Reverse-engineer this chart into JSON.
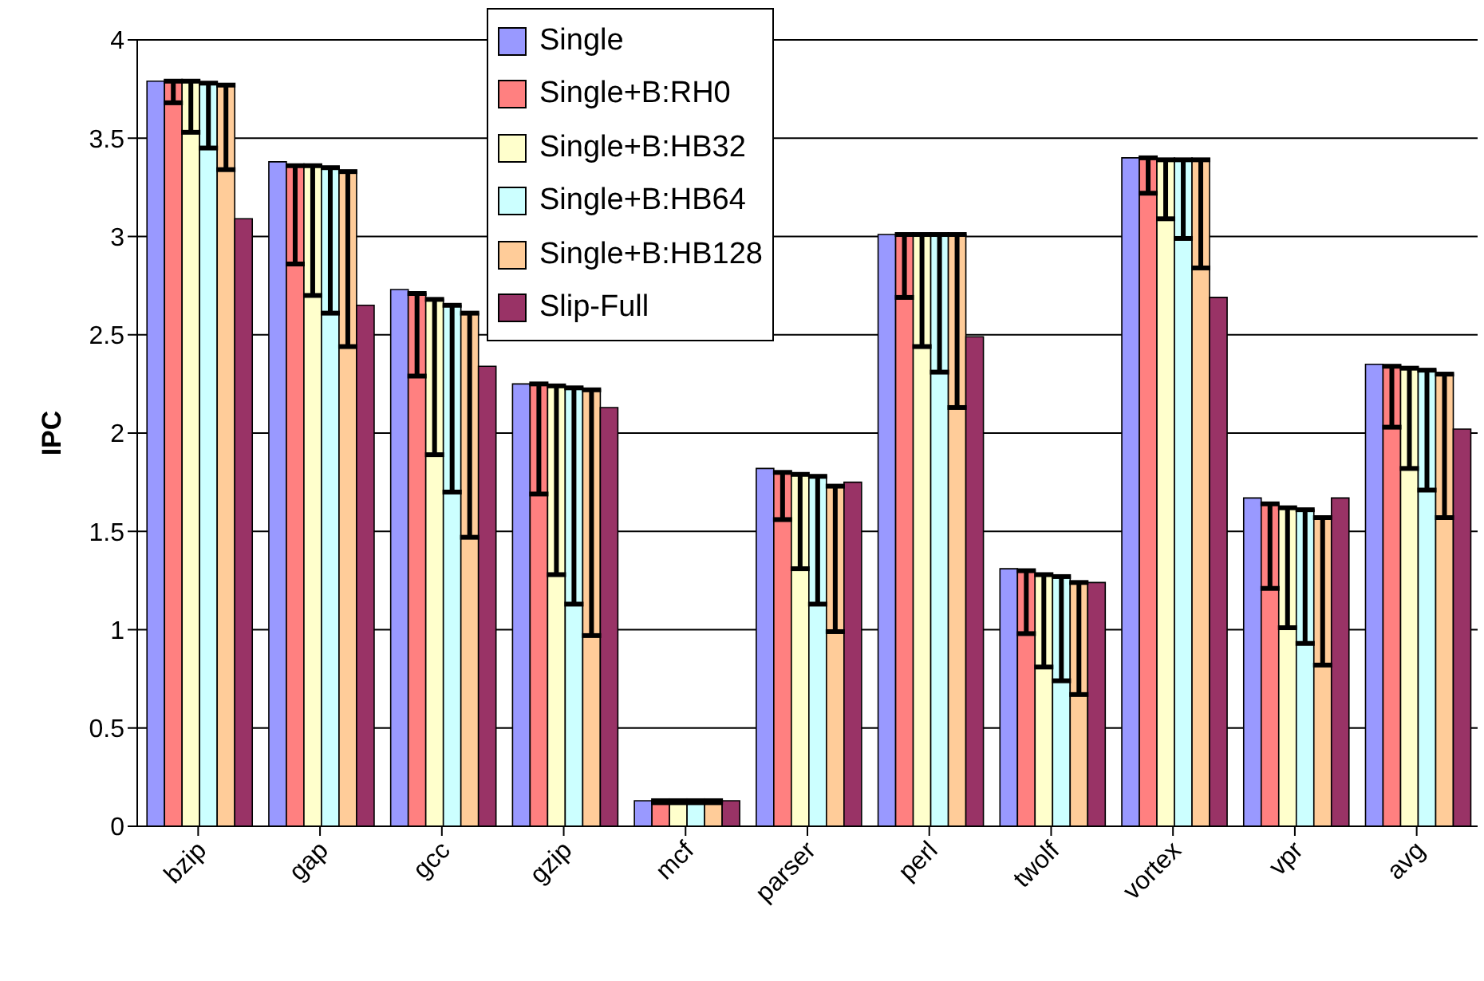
{
  "chart_data": {
    "type": "bar",
    "ylabel": "IPC",
    "categories": [
      "bzip",
      "gap",
      "gcc",
      "gzip",
      "mcf",
      "parser",
      "perl",
      "twolf",
      "vortex",
      "vpr",
      "avg"
    ],
    "ylim": [
      0,
      4
    ],
    "yticks": [
      0,
      0.5,
      1,
      1.5,
      2,
      2.5,
      3,
      3.5,
      4
    ],
    "grid": "y",
    "legend": "top",
    "series": [
      {
        "name": "Single",
        "color": "#9999ff",
        "values": [
          3.79,
          3.38,
          2.73,
          2.25,
          0.13,
          1.82,
          3.01,
          1.31,
          3.4,
          1.67,
          2.35
        ]
      },
      {
        "name": "Single+B:RH0",
        "color": "#ff8080",
        "values": [
          3.79,
          3.36,
          2.71,
          2.25,
          0.13,
          1.8,
          3.01,
          1.3,
          3.4,
          1.64,
          2.34
        ],
        "errors": [
          [
            3.68,
            3.79
          ],
          [
            2.86,
            3.36
          ],
          [
            2.29,
            2.71
          ],
          [
            1.69,
            2.25
          ],
          [
            0.12,
            0.13
          ],
          [
            1.56,
            1.8
          ],
          [
            2.69,
            3.01
          ],
          [
            0.98,
            1.3
          ],
          [
            3.22,
            3.4
          ],
          [
            1.21,
            1.64
          ],
          [
            2.03,
            2.34
          ]
        ]
      },
      {
        "name": "Single+B:HB32",
        "color": "#ffffcc",
        "values": [
          3.79,
          3.36,
          2.68,
          2.24,
          0.13,
          1.79,
          3.01,
          1.28,
          3.39,
          1.62,
          2.33
        ],
        "errors": [
          [
            3.53,
            3.79
          ],
          [
            2.7,
            3.36
          ],
          [
            1.89,
            2.68
          ],
          [
            1.28,
            2.24
          ],
          [
            0.12,
            0.13
          ],
          [
            1.31,
            1.79
          ],
          [
            2.44,
            3.01
          ],
          [
            0.81,
            1.28
          ],
          [
            3.09,
            3.39
          ],
          [
            1.01,
            1.62
          ],
          [
            1.82,
            2.33
          ]
        ]
      },
      {
        "name": "Single+B:HB64",
        "color": "#ccffff",
        "values": [
          3.78,
          3.35,
          2.65,
          2.23,
          0.13,
          1.78,
          3.01,
          1.27,
          3.39,
          1.61,
          2.32
        ],
        "errors": [
          [
            3.45,
            3.78
          ],
          [
            2.61,
            3.35
          ],
          [
            1.7,
            2.65
          ],
          [
            1.13,
            2.23
          ],
          [
            0.12,
            0.13
          ],
          [
            1.13,
            1.78
          ],
          [
            2.31,
            3.01
          ],
          [
            0.74,
            1.27
          ],
          [
            2.99,
            3.39
          ],
          [
            0.93,
            1.61
          ],
          [
            1.71,
            2.32
          ]
        ]
      },
      {
        "name": "Single+B:HB128",
        "color": "#ffcc99",
        "values": [
          3.77,
          3.33,
          2.61,
          2.22,
          0.13,
          1.73,
          3.01,
          1.24,
          3.39,
          1.57,
          2.3
        ],
        "errors": [
          [
            3.34,
            3.77
          ],
          [
            2.44,
            3.33
          ],
          [
            1.47,
            2.61
          ],
          [
            0.97,
            2.22
          ],
          [
            0.12,
            0.13
          ],
          [
            0.99,
            1.73
          ],
          [
            2.13,
            3.01
          ],
          [
            0.67,
            1.24
          ],
          [
            2.84,
            3.39
          ],
          [
            0.82,
            1.57
          ],
          [
            1.57,
            2.3
          ]
        ]
      },
      {
        "name": "Slip-Full",
        "color": "#993366",
        "values": [
          3.09,
          2.65,
          2.34,
          2.13,
          0.13,
          1.75,
          2.49,
          1.24,
          2.69,
          1.67,
          2.02
        ]
      }
    ]
  }
}
